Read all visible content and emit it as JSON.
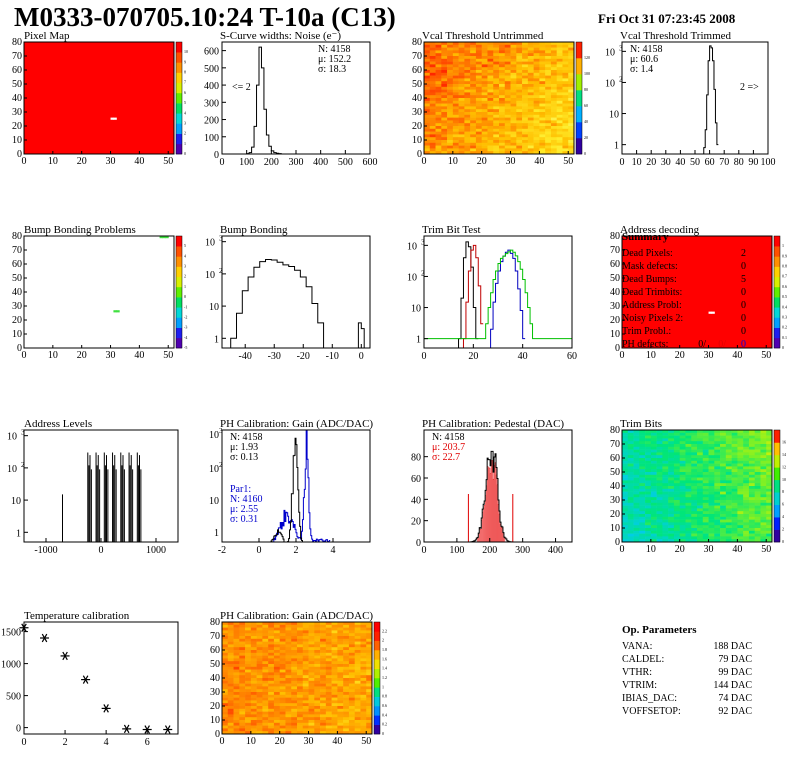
{
  "header": {
    "title": "M0333-070705.10:24 T-10a (C13)",
    "datetime": "Fri Oct 31 07:23:45 2008"
  },
  "panels": [
    {
      "title": "Pixel Map",
      "type": "map",
      "variant": "red",
      "dead": [
        [
          30,
          25
        ],
        [
          31,
          25
        ]
      ],
      "xticks": [
        0,
        10,
        20,
        30,
        40,
        50
      ],
      "yticks": [
        0,
        10,
        20,
        30,
        40,
        50,
        60,
        70,
        80
      ],
      "palette": [
        "0",
        "1",
        "2",
        "3",
        "4",
        "5",
        "6",
        "7",
        "8",
        "9",
        "10"
      ]
    },
    {
      "title": "S-Curve widths: Noise (e⁻)",
      "type": "hist",
      "xr": [
        0,
        600
      ],
      "yr": [
        0,
        650
      ],
      "log": false,
      "xticks": [
        0,
        100,
        200,
        300,
        400,
        500,
        600
      ],
      "yticks": [
        0,
        100,
        200,
        300,
        400,
        500,
        600
      ],
      "stats": [
        "N: 4158",
        "μ: 152.2",
        "σ: 18.3"
      ],
      "overflow_label": "<= 2",
      "series": [
        {
          "name": "",
          "color": "#000",
          "bins": [
            [
              90,
              0
            ],
            [
              100,
              2
            ],
            [
              110,
              8
            ],
            [
              120,
              40
            ],
            [
              130,
              160
            ],
            [
              140,
              400
            ],
            [
              150,
              620
            ],
            [
              160,
              500
            ],
            [
              170,
              260
            ],
            [
              180,
              110
            ],
            [
              190,
              45
            ],
            [
              200,
              18
            ],
            [
              210,
              8
            ],
            [
              220,
              4
            ],
            [
              230,
              2
            ],
            [
              240,
              0
            ]
          ]
        }
      ]
    },
    {
      "title": "Vcal Threshold Untrimmed",
      "type": "map",
      "variant": "untrimmed",
      "xticks": [
        0,
        10,
        20,
        30,
        40,
        50
      ],
      "yticks": [
        0,
        10,
        20,
        30,
        40,
        50,
        60,
        70,
        80
      ],
      "palette": [
        "0",
        "20",
        "40",
        "60",
        "80",
        "100",
        "120"
      ]
    },
    {
      "title": "Vcal Threshold Trimmed",
      "type": "hist",
      "xr": [
        0,
        100
      ],
      "yr": [
        0.5,
        2000
      ],
      "log": true,
      "xticks": [
        0,
        10,
        20,
        30,
        40,
        50,
        60,
        70,
        80,
        90,
        100
      ],
      "yticks": [
        1,
        10,
        100,
        1000
      ],
      "stats": [
        "N: 4158",
        "μ: 60.6",
        "σ:  1.4"
      ],
      "overflow_label": "2 =>",
      "series": [
        {
          "name": "",
          "color": "#000",
          "bins": [
            [
              56,
              0.8
            ],
            [
              57,
              3
            ],
            [
              58,
              40
            ],
            [
              59,
              500
            ],
            [
              60,
              1500
            ],
            [
              61,
              1300
            ],
            [
              62,
              500
            ],
            [
              63,
              60
            ],
            [
              64,
              5
            ],
            [
              65,
              1
            ]
          ]
        }
      ]
    },
    {
      "title": "Bump Bonding Problems",
      "type": "map",
      "variant": "white",
      "dead": [
        [
          31,
          26
        ],
        [
          32,
          26
        ],
        [
          47,
          79
        ],
        [
          48,
          79
        ],
        [
          49,
          79
        ]
      ],
      "xticks": [
        0,
        10,
        20,
        30,
        40,
        50
      ],
      "yticks": [
        0,
        10,
        20,
        30,
        40,
        50,
        60,
        70,
        80
      ],
      "palette": [
        "-5",
        "-4",
        "-3",
        "-2",
        "-1",
        "0",
        "1",
        "2",
        "3",
        "4",
        "5"
      ]
    },
    {
      "title": "Bump Bonding",
      "type": "hist",
      "xr": [
        -48,
        3
      ],
      "yr": [
        0.5,
        1500
      ],
      "log": true,
      "xticks": [
        -40,
        -30,
        -20,
        -10,
        0
      ],
      "yticks": [
        1,
        10,
        100,
        1000
      ],
      "stats": [],
      "overflow_label": "",
      "series": [
        {
          "name": "",
          "color": "#000",
          "bins": [
            [
              -46,
              0
            ],
            [
              -45,
              1
            ],
            [
              -43,
              6
            ],
            [
              -41,
              30
            ],
            [
              -39,
              80
            ],
            [
              -37,
              160
            ],
            [
              -35,
              240
            ],
            [
              -33,
              280
            ],
            [
              -31,
              270
            ],
            [
              -29,
              230
            ],
            [
              -27,
              190
            ],
            [
              -25,
              170
            ],
            [
              -23,
              130
            ],
            [
              -21,
              80
            ],
            [
              -19,
              40
            ],
            [
              -17,
              12
            ],
            [
              -15,
              3
            ],
            [
              -13,
              0
            ],
            [
              -1,
              3
            ],
            [
              0,
              2
            ],
            [
              1,
              0
            ]
          ]
        }
      ]
    },
    {
      "title": "Trim Bit Test",
      "type": "hist",
      "xr": [
        0,
        60
      ],
      "yr": [
        0.5,
        2000
      ],
      "log": true,
      "xticks": [
        0,
        20,
        40,
        60
      ],
      "yticks": [
        1,
        10,
        100,
        1000
      ],
      "stats": [],
      "overflow_label": "",
      "series": [
        {
          "name": "",
          "color": "#000",
          "bins": [
            [
              14,
              1
            ],
            [
              15,
              20
            ],
            [
              16,
              400
            ],
            [
              17,
              1300
            ],
            [
              18,
              900
            ],
            [
              19,
              200
            ],
            [
              20,
              10
            ],
            [
              21,
              1
            ]
          ]
        },
        {
          "name": "",
          "color": "#c00000",
          "bins": [
            [
              16,
              1
            ],
            [
              17,
              15
            ],
            [
              18,
              150
            ],
            [
              19,
              700
            ],
            [
              20,
              1000
            ],
            [
              21,
              400
            ],
            [
              22,
              50
            ],
            [
              23,
              3
            ]
          ]
        },
        {
          "name": "",
          "color": "#0000c0",
          "bins": [
            [
              27,
              2
            ],
            [
              28,
              15
            ],
            [
              29,
              60
            ],
            [
              30,
              150
            ],
            [
              31,
              300
            ],
            [
              32,
              450
            ],
            [
              33,
              600
            ],
            [
              34,
              700
            ],
            [
              35,
              550
            ],
            [
              36,
              380
            ],
            [
              37,
              150
            ],
            [
              38,
              40
            ],
            [
              39,
              8
            ],
            [
              40,
              1
            ]
          ]
        },
        {
          "name": "",
          "color": "#00c000",
          "bins": [
            [
              0,
              1
            ],
            [
              25,
              3
            ],
            [
              26,
              10
            ],
            [
              27,
              30
            ],
            [
              28,
              80
            ],
            [
              29,
              150
            ],
            [
              30,
              260
            ],
            [
              31,
              380
            ],
            [
              32,
              450
            ],
            [
              33,
              540
            ],
            [
              34,
              620
            ],
            [
              35,
              700
            ],
            [
              36,
              600
            ],
            [
              37,
              460
            ],
            [
              38,
              300
            ],
            [
              39,
              170
            ],
            [
              40,
              80
            ],
            [
              41,
              30
            ],
            [
              42,
              10
            ],
            [
              43,
              3
            ],
            [
              44,
              1
            ],
            [
              60,
              1
            ]
          ]
        }
      ]
    },
    {
      "title": "Address decoding",
      "type": "map",
      "variant": "red",
      "dead": [
        [
          30,
          25
        ],
        [
          31,
          25
        ]
      ],
      "xticks": [
        0,
        10,
        20,
        30,
        40,
        50
      ],
      "yticks": [
        0,
        10,
        20,
        30,
        40,
        50,
        60,
        70,
        80
      ],
      "palette": [
        "0",
        "0.1",
        "0.2",
        "0.3",
        "0.4",
        "0.5",
        "0.6",
        "0.7",
        "0.8",
        "0.9",
        "1"
      ]
    },
    {
      "title": "Address Levels",
      "type": "hist",
      "xr": [
        -1400,
        1400
      ],
      "yr": [
        0.5,
        1500
      ],
      "log": true,
      "xticks": [
        -1000,
        0,
        1000
      ],
      "yticks": [
        1,
        10,
        100,
        1000
      ],
      "stats": [],
      "overflow_label": "",
      "series": [
        {
          "name": "",
          "color": "#000",
          "bins": []
        }
      ]
    },
    {
      "title": "PH Calibration: Gain (ADC/DAC)",
      "type": "hist",
      "xr": [
        -2,
        6
      ],
      "yr": [
        0,
        230
      ],
      "log": false,
      "xticks": [
        -2,
        0,
        2,
        4
      ],
      "yticks": [
        1,
        10,
        100,
        1000
      ],
      "stats": [
        "N: 4158",
        "μ: 1.93",
        "σ: 0.13"
      ],
      "overflow_label": "",
      "stats2": [
        "Par1:",
        "N: 4160",
        "μ: 2.55",
        "σ: 0.31"
      ],
      "series": []
    },
    {
      "title": "PH Calibration: Pedestal (DAC)",
      "type": "hist",
      "xr": [
        0,
        450
      ],
      "yr": [
        0,
        105
      ],
      "log": false,
      "xticks": [
        0,
        100,
        200,
        300,
        400
      ],
      "yticks": [
        0,
        20,
        40,
        60,
        80
      ],
      "stats": [
        "N: 4158",
        "μ: 203.7",
        "σ: 22.7"
      ],
      "overflow_label": "",
      "series": []
    },
    {
      "title": "Trim Bits",
      "type": "map",
      "variant": "trimbits",
      "xticks": [
        0,
        10,
        20,
        30,
        40,
        50
      ],
      "yticks": [
        0,
        10,
        20,
        30,
        40,
        50,
        60,
        70,
        80
      ],
      "palette": [
        "0",
        "2",
        "4",
        "6",
        "8",
        "10",
        "12",
        "14",
        "16"
      ]
    },
    {
      "title": "Temperature calibration",
      "type": "scatter",
      "xr": [
        0,
        7.5
      ],
      "yr": [
        -100,
        1650
      ],
      "log": false,
      "xticks": [
        0,
        2,
        4,
        6
      ],
      "yticks": [
        0,
        500,
        1000,
        1500
      ],
      "points": [
        [
          0,
          1560
        ],
        [
          1,
          1400
        ],
        [
          2,
          1120
        ],
        [
          3,
          750
        ],
        [
          4,
          300
        ],
        [
          5,
          -20
        ],
        [
          6,
          -30
        ],
        [
          7,
          -30
        ]
      ]
    },
    {
      "title": "PH Calibration: Gain (ADC/DAC)",
      "type": "map",
      "variant": "gain",
      "xticks": [
        0,
        10,
        20,
        30,
        40,
        50
      ],
      "yticks": [
        0,
        10,
        20,
        30,
        40,
        50,
        60,
        70,
        80
      ],
      "palette": [
        "0",
        "0.2",
        "0.4",
        "0.6",
        "0.8",
        "1",
        "1.2",
        "1.4",
        "1.6",
        "1.8",
        "2",
        "2.2"
      ]
    }
  ],
  "summary": {
    "title": "Summary",
    "rows": [
      {
        "label": "Dead Pixels:",
        "value": "2"
      },
      {
        "label": "Mask defects:",
        "value": "0"
      },
      {
        "label": "Dead Bumps:",
        "value": "5"
      },
      {
        "label": "Dead Trimbits:",
        "value": "0"
      },
      {
        "label": "Address Probl:",
        "value": "0"
      },
      {
        "label": "Noisy Pixels 2:",
        "value": "0"
      },
      {
        "label": "Trim Probl.:",
        "value": "0"
      }
    ],
    "ph_label": "PH defects:",
    "ph_values": [
      "0/",
      "0/",
      "0"
    ],
    "ph_colors": [
      "#000",
      "#e00000",
      "#0000e0"
    ]
  },
  "op_params": {
    "title": "Op. Parameters",
    "rows": [
      {
        "label": "VANA:",
        "value": "188 DAC"
      },
      {
        "label": "CALDEL:",
        "value": "79 DAC"
      },
      {
        "label": "VTHR:",
        "value": "99 DAC"
      },
      {
        "label": "VTRIM:",
        "value": "144 DAC"
      },
      {
        "label": "IBIAS_DAC:",
        "value": "74 DAC"
      },
      {
        "label": "VOFFSETOP:",
        "value": "92 DAC"
      }
    ]
  }
}
